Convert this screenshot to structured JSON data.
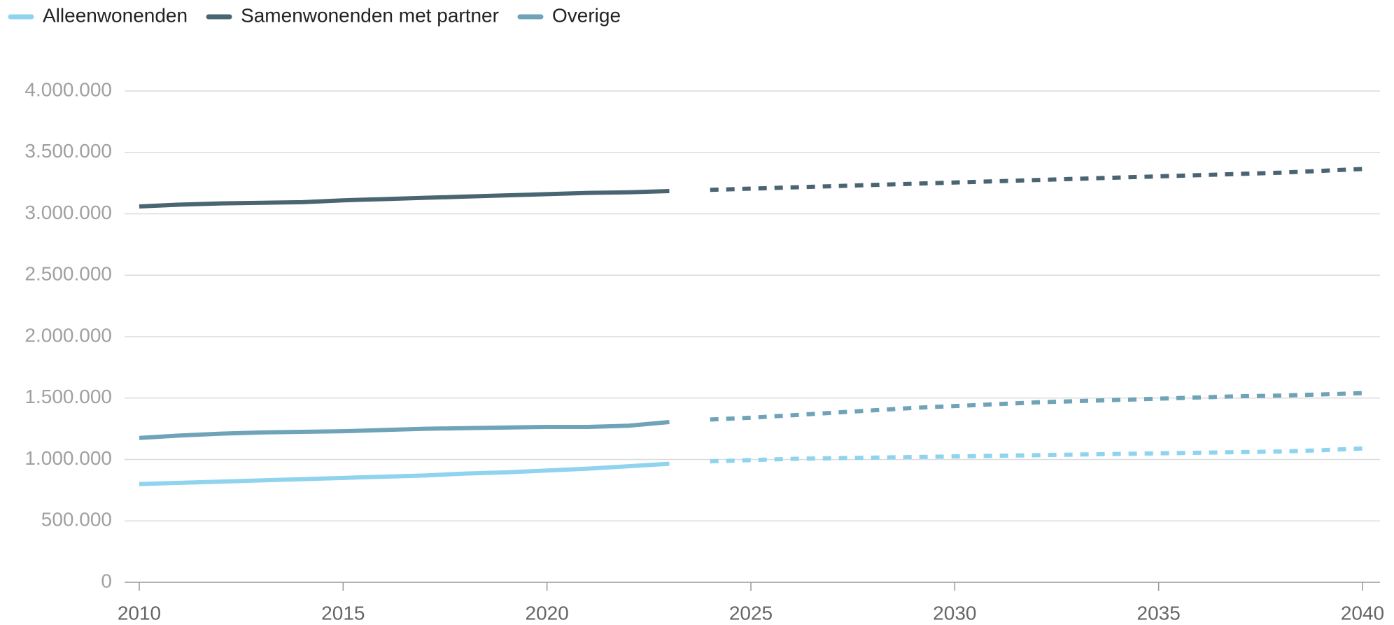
{
  "chart_data": {
    "type": "line",
    "x": [
      2010,
      2011,
      2012,
      2013,
      2014,
      2015,
      2016,
      2017,
      2018,
      2019,
      2020,
      2021,
      2022,
      2023,
      2024,
      2025,
      2026,
      2027,
      2028,
      2029,
      2030,
      2031,
      2032,
      2033,
      2034,
      2035,
      2036,
      2037,
      2038,
      2039,
      2040
    ],
    "dashed_from": 2024,
    "series": [
      {
        "name": "Alleenwonenden",
        "color": "#8fd3ee",
        "values": [
          800000,
          810000,
          820000,
          830000,
          840000,
          850000,
          860000,
          870000,
          885000,
          895000,
          910000,
          925000,
          945000,
          965000,
          985000,
          995000,
          1005000,
          1010000,
          1015000,
          1020000,
          1025000,
          1030000,
          1035000,
          1040000,
          1045000,
          1050000,
          1055000,
          1060000,
          1065000,
          1075000,
          1090000
        ]
      },
      {
        "name": "Samenwonenden met partner",
        "color": "#4a6572",
        "values": [
          3060000,
          3075000,
          3085000,
          3090000,
          3095000,
          3110000,
          3120000,
          3130000,
          3140000,
          3150000,
          3160000,
          3170000,
          3175000,
          3185000,
          3195000,
          3205000,
          3215000,
          3225000,
          3235000,
          3245000,
          3255000,
          3265000,
          3275000,
          3285000,
          3295000,
          3305000,
          3315000,
          3325000,
          3335000,
          3350000,
          3365000
        ]
      },
      {
        "name": "Overige",
        "color": "#6fa3b8",
        "values": [
          1175000,
          1195000,
          1210000,
          1220000,
          1225000,
          1230000,
          1240000,
          1250000,
          1255000,
          1260000,
          1265000,
          1265000,
          1275000,
          1305000,
          1325000,
          1340000,
          1360000,
          1380000,
          1400000,
          1420000,
          1435000,
          1450000,
          1465000,
          1475000,
          1485000,
          1495000,
          1505000,
          1515000,
          1520000,
          1530000,
          1540000
        ]
      }
    ],
    "xlim": [
      2010,
      2040
    ],
    "xticks": [
      2010,
      2015,
      2020,
      2025,
      2030,
      2035,
      2040
    ],
    "ylim": [
      0,
      4000000
    ],
    "yticks": [
      0,
      {
        "value": 500000,
        "label": "500.000"
      },
      {
        "value": 1000000,
        "label": "1.000.000"
      },
      {
        "value": 1500000,
        "label": "1.500.000"
      },
      {
        "value": 2000000,
        "label": "2.000.000"
      },
      {
        "value": 2500000,
        "label": "2.500.000"
      },
      {
        "value": 3000000,
        "label": "3.000.000"
      },
      {
        "value": 3500000,
        "label": "3.500.000"
      },
      {
        "value": 4000000,
        "label": "4.000.000"
      }
    ],
    "grid": true,
    "legend": "top-left"
  }
}
